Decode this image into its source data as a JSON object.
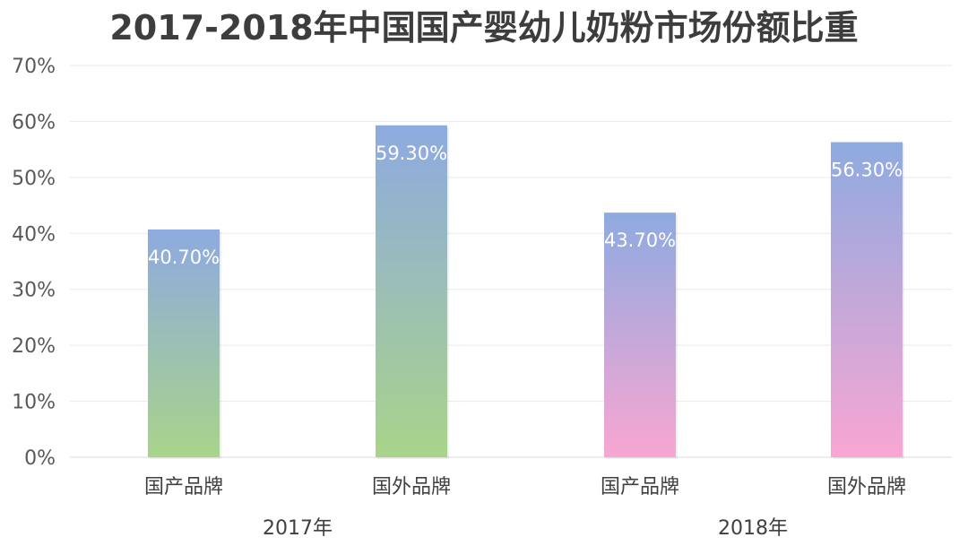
{
  "chart_data": {
    "type": "bar",
    "title": "2017-2018年中国国产婴幼儿奶粉市场份额比重",
    "xlabel": "",
    "ylabel": "",
    "ylim": [
      0,
      70
    ],
    "yticks": [
      "0%",
      "10%",
      "20%",
      "30%",
      "40%",
      "50%",
      "60%",
      "70%"
    ],
    "groups": [
      {
        "label": "2017年",
        "bars": [
          {
            "category": "国产品牌",
            "value": 40.7,
            "label": "40.70%"
          },
          {
            "category": "国外品牌",
            "value": 59.3,
            "label": "59.30%"
          }
        ]
      },
      {
        "label": "2018年",
        "bars": [
          {
            "category": "国产品牌",
            "value": 43.7,
            "label": "43.70%"
          },
          {
            "category": "国外品牌",
            "value": 56.3,
            "label": "56.30%"
          }
        ]
      }
    ],
    "grid": true,
    "legend": "none",
    "colors": {
      "top": "#8eaae0",
      "bottom_2017": "#a8d48a",
      "bottom_2018": "#f9a6d2"
    }
  }
}
